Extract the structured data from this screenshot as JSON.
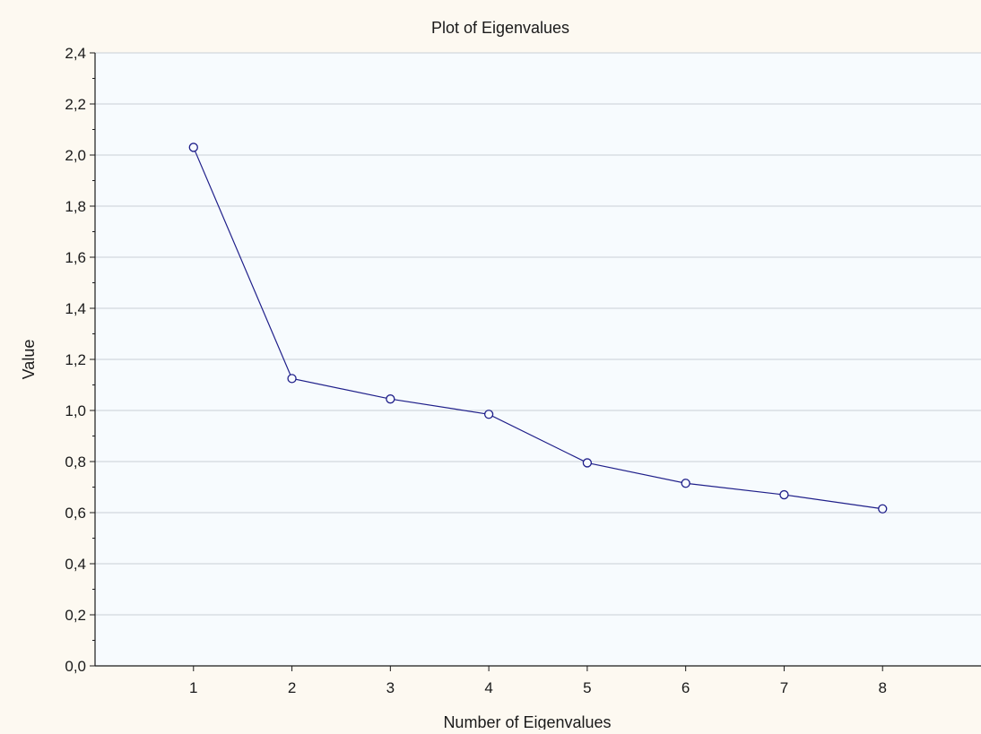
{
  "chart_data": {
    "type": "line",
    "title": "Plot of Eigenvalues",
    "xlabel": "Number of Eigenvalues",
    "ylabel": "Value",
    "x": [
      1,
      2,
      3,
      4,
      5,
      6,
      7,
      8
    ],
    "series": [
      {
        "values": [
          2.03,
          1.125,
          1.045,
          0.985,
          0.795,
          0.715,
          0.67,
          0.615
        ]
      }
    ],
    "xlim": [
      0,
      9
    ],
    "ylim": [
      0,
      2.4
    ],
    "x_ticks": [
      "1",
      "2",
      "3",
      "4",
      "5",
      "6",
      "7",
      "8"
    ],
    "y_ticks": [
      "0,0",
      "0,2",
      "0,4",
      "0,6",
      "0,8",
      "1,0",
      "1,2",
      "1,4",
      "1,6",
      "1,8",
      "2,0",
      "2,2",
      "2,4"
    ],
    "y_tick_values": [
      0,
      0.2,
      0.4,
      0.6,
      0.8,
      1.0,
      1.2,
      1.4,
      1.6,
      1.8,
      2.0,
      2.2,
      2.4
    ],
    "grid": "horizontal",
    "marker": "open-circle",
    "colors": {
      "line": "#1f1f8a",
      "marker": "#1f1f8a",
      "plot_background": "#f7fbfe",
      "page_background": "#fdf9f1",
      "grid": "#c9cfd6",
      "axis": "#1a1a1a"
    }
  }
}
